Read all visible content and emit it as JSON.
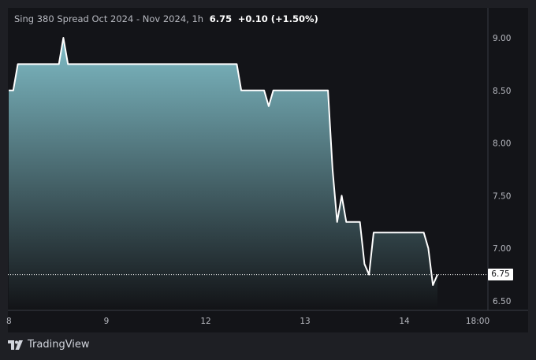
{
  "legend": {
    "symbol": "Sing 380 Spread Oct 2024 - Nov 2024, 1h",
    "last": "6.75",
    "change": "+0.10 (+1.50%)"
  },
  "brand": {
    "name": "TradingView",
    "icon": "tradingview-logo-icon"
  },
  "colors": {
    "line": "#ffffff",
    "fill_top": "#7fbcc6",
    "fill_bottom": "#121316",
    "background": "#131418"
  },
  "chart_data": {
    "type": "area",
    "y_ticks": [
      "9.00",
      "8.50",
      "8.00",
      "7.50",
      "7.00",
      "6.50"
    ],
    "x_ticks": [
      "8",
      "9",
      "12",
      "13",
      "14",
      "18:00"
    ],
    "last_price_label": "6.75",
    "ylim": [
      6.42,
      9.1
    ],
    "x_unit": "bar index (hourly bars)",
    "series": [
      {
        "points": [
          [
            0,
            8.5
          ],
          [
            1,
            8.5
          ],
          [
            2,
            8.75
          ],
          [
            3,
            8.75
          ],
          [
            4,
            8.75
          ],
          [
            5,
            8.75
          ],
          [
            6,
            8.75
          ],
          [
            7,
            8.75
          ],
          [
            8,
            8.75
          ],
          [
            9,
            8.75
          ],
          [
            10,
            8.75
          ],
          [
            11,
            8.75
          ],
          [
            12,
            9.0
          ],
          [
            13,
            8.75
          ],
          [
            14,
            8.75
          ],
          [
            20,
            8.75
          ],
          [
            30,
            8.75
          ],
          [
            40,
            8.75
          ],
          [
            50,
            8.75
          ],
          [
            51,
            8.5
          ],
          [
            52,
            8.5
          ],
          [
            53,
            8.5
          ],
          [
            54,
            8.5
          ],
          [
            55,
            8.5
          ],
          [
            56,
            8.5
          ],
          [
            57,
            8.35
          ],
          [
            58,
            8.5
          ],
          [
            59,
            8.5
          ],
          [
            60,
            8.5
          ],
          [
            65,
            8.5
          ],
          [
            70,
            8.5
          ],
          [
            71,
            7.75
          ],
          [
            72,
            7.25
          ],
          [
            73,
            7.5
          ],
          [
            74,
            7.25
          ],
          [
            75,
            7.25
          ],
          [
            76,
            7.25
          ],
          [
            77,
            7.25
          ],
          [
            78,
            6.85
          ],
          [
            79,
            6.75
          ],
          [
            80,
            7.15
          ],
          [
            81,
            7.15
          ],
          [
            85,
            7.15
          ],
          [
            90,
            7.15
          ],
          [
            91,
            7.15
          ],
          [
            92,
            7.0
          ],
          [
            93,
            6.65
          ],
          [
            94,
            6.75
          ]
        ]
      }
    ]
  }
}
